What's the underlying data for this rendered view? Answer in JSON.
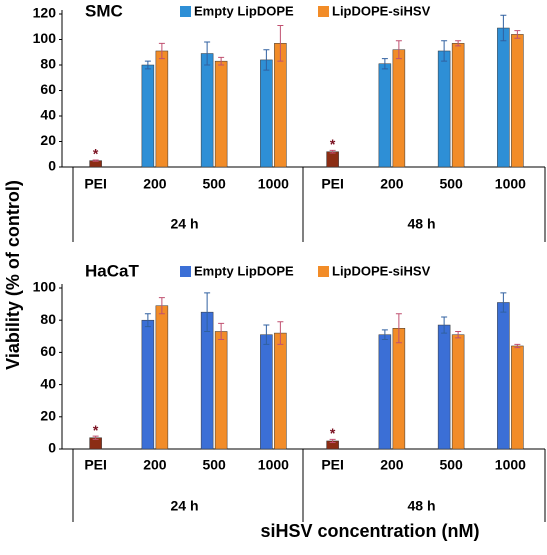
{
  "ylabel": "Viability (% of control)",
  "xlabel": "siHSV concentration (nM)",
  "chart_data": [
    {
      "type": "bar",
      "title": "SMC",
      "categories": [
        "PEI",
        "200",
        "500",
        "1000",
        "PEI",
        "200",
        "500",
        "1000"
      ],
      "groups": [
        "24 h",
        "48 h"
      ],
      "ylim": [
        0,
        120
      ],
      "yticks": [
        0,
        20,
        40,
        60,
        80,
        100,
        120
      ],
      "series": [
        {
          "name": "Empty LipDOPE",
          "color": "#2e8fd6",
          "values": [
            null,
            80,
            89,
            84,
            null,
            81,
            91,
            109
          ],
          "errors": [
            null,
            3,
            9,
            8,
            null,
            4,
            8,
            10
          ]
        },
        {
          "name": "LipDOPE-siHSV",
          "color": "#f28c28",
          "values": [
            null,
            91,
            83,
            97,
            null,
            92,
            97,
            104
          ],
          "errors": [
            null,
            6,
            3,
            14,
            null,
            7,
            2,
            3
          ]
        }
      ],
      "reference": {
        "color": "#8b2d14",
        "annotation": "*",
        "values": [
          5,
          null,
          null,
          null,
          12,
          null,
          null,
          null
        ],
        "errors": [
          0.5,
          null,
          null,
          null,
          1,
          null,
          null,
          null
        ]
      }
    },
    {
      "type": "bar",
      "title": "HaCaT",
      "categories": [
        "PEI",
        "200",
        "500",
        "1000",
        "PEI",
        "200",
        "500",
        "1000"
      ],
      "groups": [
        "24 h",
        "48 h"
      ],
      "ylim": [
        0,
        100
      ],
      "yticks": [
        0,
        20,
        40,
        60,
        80,
        100
      ],
      "series": [
        {
          "name": "Empty LipDOPE",
          "color": "#3b6fd6",
          "values": [
            null,
            80,
            85,
            71,
            null,
            71,
            77,
            91
          ],
          "errors": [
            null,
            4,
            12,
            6,
            null,
            3,
            5,
            6
          ]
        },
        {
          "name": "LipDOPE-siHSV",
          "color": "#f28c28",
          "values": [
            null,
            89,
            73,
            72,
            null,
            75,
            71,
            64
          ],
          "errors": [
            null,
            5,
            5,
            7,
            null,
            9,
            2,
            1
          ]
        }
      ],
      "reference": {
        "color": "#8b2d14",
        "annotation": "*",
        "values": [
          7,
          null,
          null,
          null,
          5,
          null,
          null,
          null
        ],
        "errors": [
          1,
          null,
          null,
          null,
          1,
          null,
          null,
          null
        ]
      }
    }
  ]
}
